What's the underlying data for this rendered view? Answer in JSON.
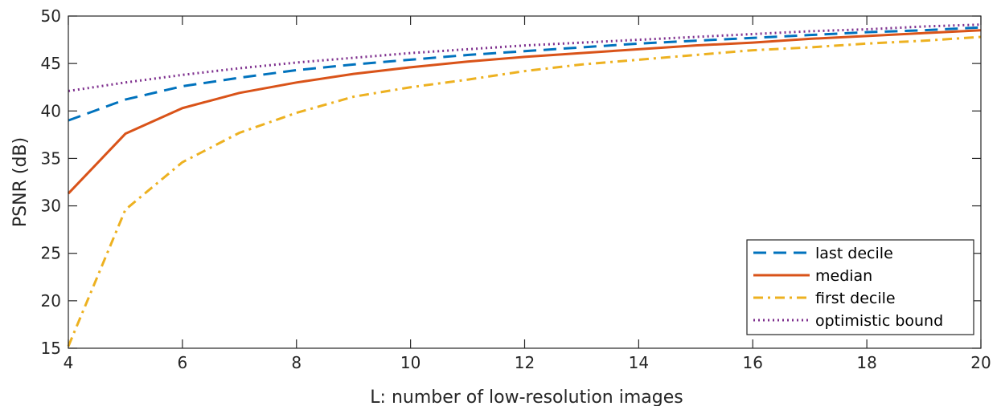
{
  "chart_data": {
    "type": "line",
    "title": "",
    "xlabel": "L: number of low-resolution images",
    "ylabel": "PSNR (dB)",
    "xlim": [
      4,
      20
    ],
    "ylim": [
      15,
      50
    ],
    "xticks": [
      4,
      6,
      8,
      10,
      12,
      14,
      16,
      18,
      20
    ],
    "yticks": [
      15,
      20,
      25,
      30,
      35,
      40,
      45,
      50
    ],
    "grid": false,
    "legend_position": "bottom-right",
    "x": [
      4,
      5,
      6,
      7,
      8,
      9,
      10,
      11,
      12,
      13,
      14,
      15,
      16,
      17,
      18,
      19,
      20
    ],
    "series": [
      {
        "name": "last decile",
        "color": "#0072BD",
        "line_style": "dashed",
        "values": [
          39.0,
          41.2,
          42.6,
          43.5,
          44.3,
          44.9,
          45.4,
          45.9,
          46.3,
          46.7,
          47.1,
          47.4,
          47.7,
          48.0,
          48.3,
          48.5,
          48.8
        ]
      },
      {
        "name": "median",
        "color": "#D95319",
        "line_style": "solid",
        "values": [
          31.3,
          37.6,
          40.3,
          41.9,
          43.0,
          43.9,
          44.6,
          45.2,
          45.7,
          46.1,
          46.5,
          46.9,
          47.2,
          47.6,
          47.9,
          48.2,
          48.5
        ]
      },
      {
        "name": "first decile",
        "color": "#EDB120",
        "line_style": "dashdot",
        "values": [
          15.2,
          29.6,
          34.6,
          37.7,
          39.8,
          41.5,
          42.5,
          43.3,
          44.2,
          44.9,
          45.4,
          45.9,
          46.4,
          46.7,
          47.1,
          47.4,
          47.8
        ]
      },
      {
        "name": "optimistic bound",
        "color": "#7E2F8E",
        "line_style": "dotted",
        "values": [
          42.1,
          43.0,
          43.8,
          44.5,
          45.1,
          45.6,
          46.1,
          46.5,
          46.9,
          47.2,
          47.5,
          47.8,
          48.1,
          48.4,
          48.6,
          48.9,
          49.1
        ]
      }
    ]
  }
}
